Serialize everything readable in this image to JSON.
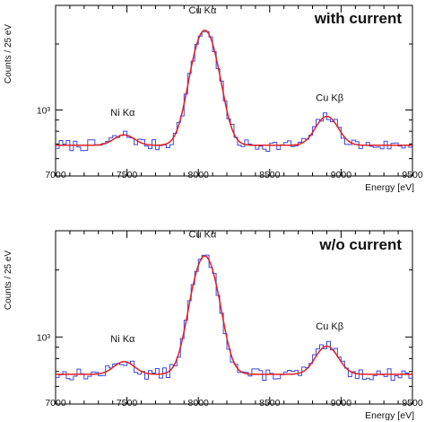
{
  "chart_data": [
    {
      "type": "histogram",
      "panel_label": "with current",
      "ylabel": "Counts / 25 eV",
      "xlabel": "Energy [eV]",
      "xlim": [
        7000,
        9500
      ],
      "y_scale": "log",
      "ylim": [
        500,
        3000
      ],
      "x_ticks": [
        7000,
        7500,
        8000,
        8500,
        9000,
        9500
      ],
      "y_tick_labels": [
        "10³"
      ],
      "y_tick_values": [
        1000
      ],
      "annotations": [
        {
          "text": "Ni Kα",
          "x": 7470,
          "y": 940
        },
        {
          "text": "Cu Kα",
          "x": 8030,
          "y": 2750
        },
        {
          "text": "Cu Kβ",
          "x": 8920,
          "y": 1100
        }
      ],
      "background": 690,
      "peaks": [
        {
          "name": "Ni Kα",
          "center": 7480,
          "amplitude": 80,
          "sigma": 70
        },
        {
          "name": "Cu Kα",
          "center": 8045,
          "amplitude": 1620,
          "sigma": 85
        },
        {
          "name": "Cu Kβ",
          "center": 8900,
          "amplitude": 245,
          "sigma": 75
        }
      ],
      "bin_width": 25,
      "noise_seed": 7
    },
    {
      "type": "histogram",
      "panel_label": "w/o current",
      "ylabel": "Counts / 25 eV",
      "xlabel": "Energy [eV]",
      "xlim": [
        7000,
        9500
      ],
      "y_scale": "log",
      "ylim": [
        500,
        3000
      ],
      "x_ticks": [
        7000,
        7500,
        8000,
        8500,
        9000,
        9500
      ],
      "y_tick_labels": [
        "10³"
      ],
      "y_tick_values": [
        1000
      ],
      "annotations": [
        {
          "text": "Ni Kα",
          "x": 7470,
          "y": 950
        },
        {
          "text": "Cu Kα",
          "x": 8030,
          "y": 2800
        },
        {
          "text": "Cu Kβ",
          "x": 8920,
          "y": 1080
        }
      ],
      "background": 680,
      "peaks": [
        {
          "name": "Ni Kα",
          "center": 7480,
          "amplitude": 95,
          "sigma": 70
        },
        {
          "name": "Cu Kα",
          "center": 8045,
          "amplitude": 1630,
          "sigma": 85
        },
        {
          "name": "Cu Kβ",
          "center": 8900,
          "amplitude": 230,
          "sigma": 75
        }
      ],
      "bin_width": 25,
      "noise_seed": 13
    }
  ],
  "colors": {
    "histogram": "#3b46e0",
    "fit": "#e01f1f"
  }
}
